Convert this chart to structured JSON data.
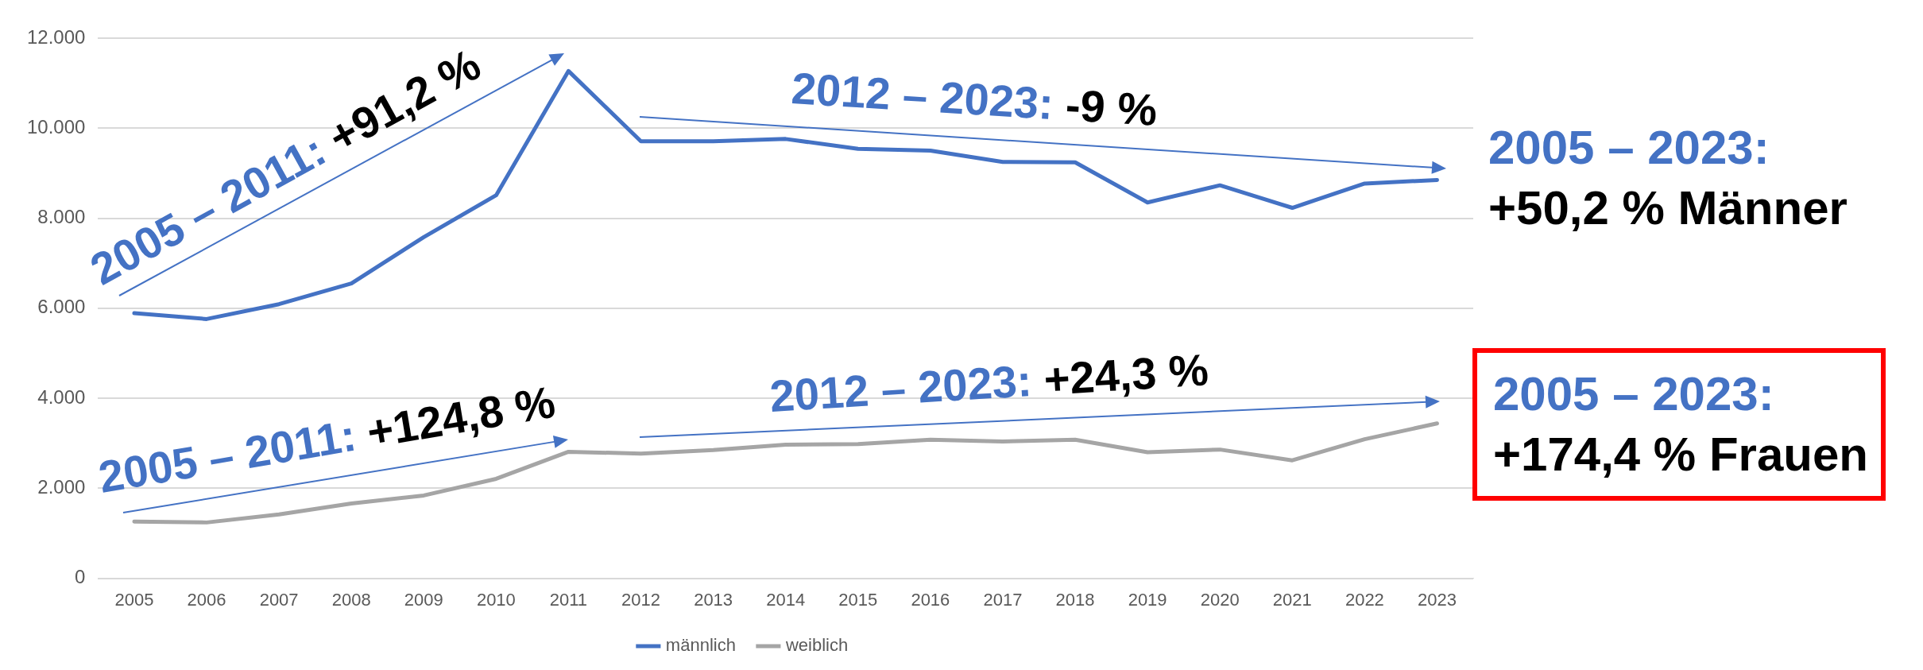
{
  "chart_data": {
    "type": "line",
    "categories": [
      "2005",
      "2006",
      "2007",
      "2008",
      "2009",
      "2010",
      "2011",
      "2012",
      "2013",
      "2014",
      "2015",
      "2016",
      "2017",
      "2018",
      "2019",
      "2020",
      "2021",
      "2022",
      "2023"
    ],
    "series": [
      {
        "name": "männlich",
        "color": "#4472c4",
        "values": [
          5890,
          5760,
          6090,
          6550,
          7580,
          8510,
          11270,
          9710,
          9710,
          9760,
          9540,
          9500,
          9250,
          9240,
          8350,
          8730,
          8230,
          8770,
          8850
        ]
      },
      {
        "name": "weiblich",
        "color": "#a5a5a5",
        "values": [
          1260,
          1240,
          1420,
          1660,
          1840,
          2210,
          2810,
          2770,
          2850,
          2970,
          2980,
          3080,
          3040,
          3080,
          2800,
          2860,
          2620,
          3090,
          3440
        ]
      }
    ],
    "ylim": [
      0,
      12000
    ],
    "yticks": [
      0,
      {
        "value": 2000,
        "label": "2.000"
      },
      {
        "value": 4000,
        "label": "4.000"
      },
      {
        "value": 6000,
        "label": "6.000"
      },
      {
        "value": 8000,
        "label": "8.000"
      },
      {
        "value": 10000,
        "label": "10.000"
      },
      {
        "value": 12000,
        "label": "12.000"
      }
    ],
    "grid": "y",
    "legend": "bottom",
    "marker": "none",
    "line_style": "solid",
    "annotations": [
      "2005 – 2011: +91,2 %",
      "2005 – 2011: +124,8 %",
      "2012 – 2023: -9 %",
      "2012 – 2023: +24,3 %",
      "2005 – 2023: +50,2 % Männer",
      "2005 – 2023: +174,4 % Frauen"
    ]
  }
}
